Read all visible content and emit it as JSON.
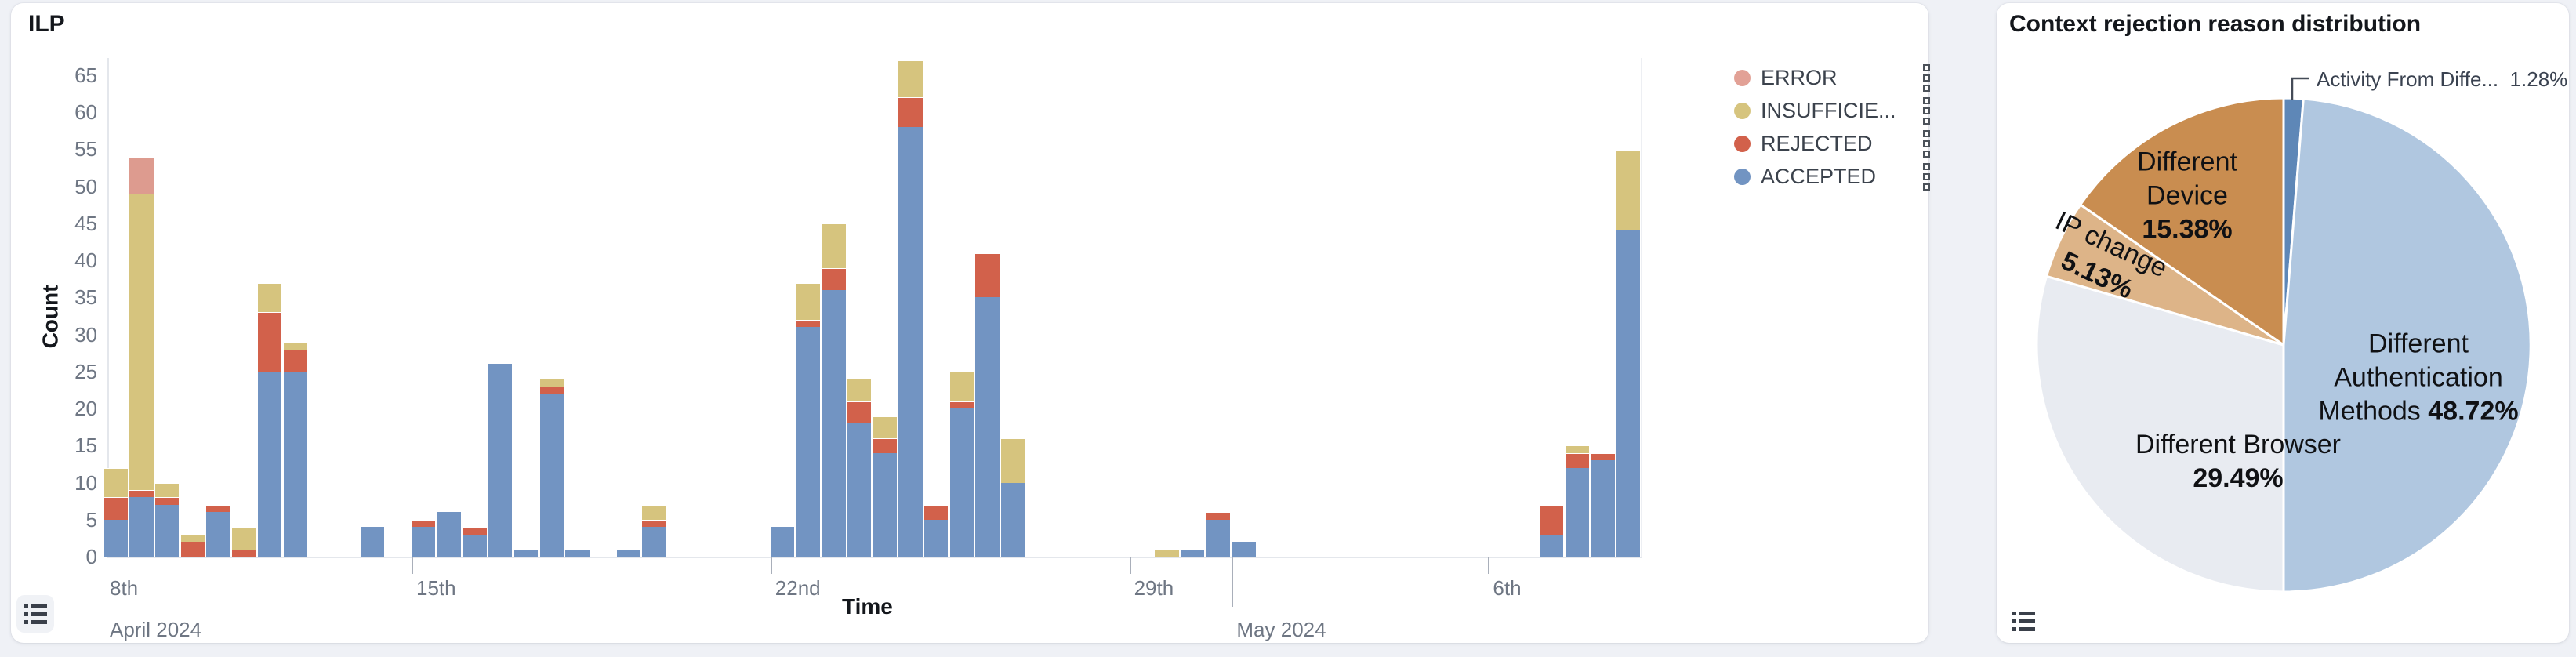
{
  "page": {
    "background": "#eff1f6",
    "panel_background": "#ffffff"
  },
  "left_panel": {
    "title": "ILP",
    "y_axis_title": "Count",
    "x_axis_title": "Time",
    "legend": [
      {
        "label": "ERROR",
        "color": "#e2a196"
      },
      {
        "label": "INSUFFICIE...",
        "color": "#d6c47e"
      },
      {
        "label": "REJECTED",
        "color": "#d2614b"
      },
      {
        "label": "ACCEPTED",
        "color": "#7294c2"
      }
    ]
  },
  "right_panel": {
    "title": "Context rejection reason distribution"
  },
  "chart_data": [
    {
      "type": "bar",
      "stacked": true,
      "title": "ILP",
      "xlabel": "Time",
      "ylabel": "Count",
      "ylim": [
        0,
        67
      ],
      "yticks": [
        0,
        5,
        10,
        15,
        20,
        25,
        30,
        35,
        40,
        45,
        50,
        55,
        60,
        65
      ],
      "legend_position": "right",
      "grid": false,
      "bin_unit": "12 hours",
      "bin_start": "2024-04-09 00:00",
      "x_ticks": [
        {
          "label": "8th",
          "sublabel": "April 2024",
          "bin": -2,
          "clamped": true
        },
        {
          "label": "15th",
          "bin": 12
        },
        {
          "label": "22nd",
          "bin": 26
        },
        {
          "label": "29th",
          "bin": 40
        },
        {
          "label": "May 2024",
          "bin": 44,
          "month": true
        },
        {
          "label": "6th",
          "bin": 54
        }
      ],
      "series_order": [
        "ACCEPTED",
        "REJECTED",
        "INSUFFICIENT",
        "ERROR"
      ],
      "colors": {
        "ACCEPTED": "#7294c2",
        "REJECTED": "#d2614b",
        "INSUFFICIENT": "#d6c47e",
        "ERROR": "#dd9b8f"
      },
      "bars": [
        {
          "bin": 0,
          "t": "Apr 9 AM",
          "ACCEPTED": 5,
          "REJECTED": 3,
          "INSUFFICIENT": 4,
          "ERROR": 0
        },
        {
          "bin": 1,
          "t": "Apr 9 PM",
          "ACCEPTED": 8,
          "REJECTED": 1,
          "INSUFFICIENT": 40,
          "ERROR": 5
        },
        {
          "bin": 2,
          "t": "Apr 10 AM",
          "ACCEPTED": 7,
          "REJECTED": 1,
          "INSUFFICIENT": 2,
          "ERROR": 0
        },
        {
          "bin": 3,
          "t": "Apr 10 PM",
          "ACCEPTED": 0,
          "REJECTED": 2,
          "INSUFFICIENT": 1,
          "ERROR": 0
        },
        {
          "bin": 4,
          "t": "Apr 11 AM",
          "ACCEPTED": 6,
          "REJECTED": 1,
          "INSUFFICIENT": 0,
          "ERROR": 0
        },
        {
          "bin": 5,
          "t": "Apr 11 PM",
          "ACCEPTED": 0,
          "REJECTED": 1,
          "INSUFFICIENT": 3,
          "ERROR": 0
        },
        {
          "bin": 6,
          "t": "Apr 12 AM",
          "ACCEPTED": 25,
          "REJECTED": 8,
          "INSUFFICIENT": 4,
          "ERROR": 0
        },
        {
          "bin": 7,
          "t": "Apr 12 PM",
          "ACCEPTED": 25,
          "REJECTED": 3,
          "INSUFFICIENT": 1,
          "ERROR": 0
        },
        {
          "bin": 10,
          "t": "Apr 14 AM",
          "ACCEPTED": 4,
          "REJECTED": 0,
          "INSUFFICIENT": 0,
          "ERROR": 0
        },
        {
          "bin": 12,
          "t": "Apr 15 AM",
          "ACCEPTED": 4,
          "REJECTED": 1,
          "INSUFFICIENT": 0,
          "ERROR": 0
        },
        {
          "bin": 13,
          "t": "Apr 15 PM",
          "ACCEPTED": 6,
          "REJECTED": 0,
          "INSUFFICIENT": 0,
          "ERROR": 0
        },
        {
          "bin": 14,
          "t": "Apr 16 AM",
          "ACCEPTED": 3,
          "REJECTED": 1,
          "INSUFFICIENT": 0,
          "ERROR": 0
        },
        {
          "bin": 15,
          "t": "Apr 16 PM",
          "ACCEPTED": 26,
          "REJECTED": 0,
          "INSUFFICIENT": 0,
          "ERROR": 0
        },
        {
          "bin": 16,
          "t": "Apr 17 AM",
          "ACCEPTED": 1,
          "REJECTED": 0,
          "INSUFFICIENT": 0,
          "ERROR": 0
        },
        {
          "bin": 17,
          "t": "Apr 17 PM",
          "ACCEPTED": 22,
          "REJECTED": 1,
          "INSUFFICIENT": 1,
          "ERROR": 0
        },
        {
          "bin": 18,
          "t": "Apr 18 AM",
          "ACCEPTED": 1,
          "REJECTED": 0,
          "INSUFFICIENT": 0,
          "ERROR": 0
        },
        {
          "bin": 20,
          "t": "Apr 19 AM",
          "ACCEPTED": 1,
          "REJECTED": 0,
          "INSUFFICIENT": 0,
          "ERROR": 0
        },
        {
          "bin": 21,
          "t": "Apr 19 PM",
          "ACCEPTED": 4,
          "REJECTED": 1,
          "INSUFFICIENT": 2,
          "ERROR": 0
        },
        {
          "bin": 26,
          "t": "Apr 22 AM",
          "ACCEPTED": 4,
          "REJECTED": 0,
          "INSUFFICIENT": 0,
          "ERROR": 0
        },
        {
          "bin": 27,
          "t": "Apr 22 PM",
          "ACCEPTED": 31,
          "REJECTED": 1,
          "INSUFFICIENT": 5,
          "ERROR": 0
        },
        {
          "bin": 28,
          "t": "Apr 23 AM",
          "ACCEPTED": 36,
          "REJECTED": 3,
          "INSUFFICIENT": 6,
          "ERROR": 0
        },
        {
          "bin": 29,
          "t": "Apr 23 PM",
          "ACCEPTED": 18,
          "REJECTED": 3,
          "INSUFFICIENT": 3,
          "ERROR": 0
        },
        {
          "bin": 30,
          "t": "Apr 24 AM",
          "ACCEPTED": 14,
          "REJECTED": 2,
          "INSUFFICIENT": 3,
          "ERROR": 0
        },
        {
          "bin": 31,
          "t": "Apr 24 PM",
          "ACCEPTED": 58,
          "REJECTED": 4,
          "INSUFFICIENT": 5,
          "ERROR": 0
        },
        {
          "bin": 32,
          "t": "Apr 25 AM",
          "ACCEPTED": 5,
          "REJECTED": 2,
          "INSUFFICIENT": 0,
          "ERROR": 0
        },
        {
          "bin": 33,
          "t": "Apr 25 PM",
          "ACCEPTED": 20,
          "REJECTED": 1,
          "INSUFFICIENT": 4,
          "ERROR": 0
        },
        {
          "bin": 34,
          "t": "Apr 26 AM",
          "ACCEPTED": 35,
          "REJECTED": 6,
          "INSUFFICIENT": 0,
          "ERROR": 0
        },
        {
          "bin": 35,
          "t": "Apr 26 PM",
          "ACCEPTED": 10,
          "REJECTED": 0,
          "INSUFFICIENT": 6,
          "ERROR": 0
        },
        {
          "bin": 41,
          "t": "Apr 29 PM",
          "ACCEPTED": 0,
          "REJECTED": 0,
          "INSUFFICIENT": 1,
          "ERROR": 0
        },
        {
          "bin": 42,
          "t": "Apr 30 AM",
          "ACCEPTED": 1,
          "REJECTED": 0,
          "INSUFFICIENT": 0,
          "ERROR": 0
        },
        {
          "bin": 43,
          "t": "Apr 30 PM",
          "ACCEPTED": 5,
          "REJECTED": 1,
          "INSUFFICIENT": 0,
          "ERROR": 0
        },
        {
          "bin": 44,
          "t": "May 1 AM",
          "ACCEPTED": 2,
          "REJECTED": 0,
          "INSUFFICIENT": 0,
          "ERROR": 0
        },
        {
          "bin": 56,
          "t": "May 7 AM",
          "ACCEPTED": 3,
          "REJECTED": 4,
          "INSUFFICIENT": 0,
          "ERROR": 0
        },
        {
          "bin": 57,
          "t": "May 7 PM",
          "ACCEPTED": 12,
          "REJECTED": 2,
          "INSUFFICIENT": 1,
          "ERROR": 0
        },
        {
          "bin": 58,
          "t": "May 8 AM",
          "ACCEPTED": 13,
          "REJECTED": 1,
          "INSUFFICIENT": 0,
          "ERROR": 0
        },
        {
          "bin": 59,
          "t": "May 8 PM",
          "ACCEPTED": 44,
          "REJECTED": 0,
          "INSUFFICIENT": 11,
          "ERROR": 0
        }
      ]
    },
    {
      "type": "pie",
      "title": "Context rejection reason distribution",
      "start_angle": "top",
      "direction": "clockwise",
      "slices": [
        {
          "name": "Activity From Diffe...",
          "pct": 1.28,
          "color": "#5e87b7",
          "callout": true
        },
        {
          "name": "Different Authentication Methods",
          "pct": 48.72,
          "color": "#b0c7e0",
          "lines": [
            "Different",
            "Authentication",
            "Methods"
          ],
          "pct_inline": true
        },
        {
          "name": "Different Browser",
          "pct": 29.49,
          "color": "#e8ebf1",
          "lines": [
            "Different Browser"
          ]
        },
        {
          "name": "IP change",
          "pct": 5.13,
          "color": "#ddb488",
          "lines": [
            "IP change"
          ],
          "rotate": 25
        },
        {
          "name": "Different Device",
          "pct": 15.38,
          "color": "#c98d50",
          "lines": [
            "Different",
            "Device"
          ]
        }
      ]
    }
  ]
}
